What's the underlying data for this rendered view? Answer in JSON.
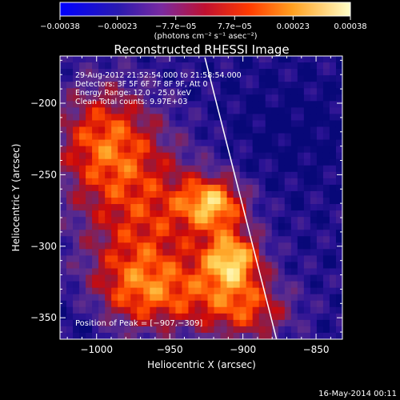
{
  "chart_data": {
    "type": "heatmap",
    "title": "Reconstructed RHESSI Image",
    "xlabel": "Heliocentric X (arcsec)",
    "ylabel": "Heliocentric Y (arcsec)",
    "xlim": [
      -1025,
      -832
    ],
    "ylim": [
      -365,
      -167
    ],
    "x_ticks": [
      -1000,
      -950,
      -900,
      -850
    ],
    "x_tick_labels": [
      "−1000",
      "−950",
      "−900",
      "−850"
    ],
    "y_ticks": [
      -200,
      -250,
      -300,
      -350
    ],
    "y_tick_labels": [
      "−200",
      "−250",
      "−300",
      "−350"
    ],
    "colorbar": {
      "min": -0.00038,
      "max": 0.00038,
      "tick_labels": [
        "−0.00038",
        "−0.00023",
        "−7.7e−05",
        "7.7e−05",
        "0.00023",
        "0.00038"
      ],
      "unit_label": "(photons cm⁻² s⁻¹ asec⁻²)",
      "colormap": [
        "#0a0aa8",
        "#5a1a9c",
        "#8a3a8e",
        "#c01010",
        "#ff5a00",
        "#ffb830",
        "#ffffd0"
      ]
    },
    "annotations": [
      "29-Aug-2012 21:52:54.000 to 21:58:54.000",
      "Detectors: 3F 5F 6F 7F 8F 9F, Att 0",
      "Energy Range: 12.0 - 25.0 keV",
      "Clean     Total counts: 9.97E+03"
    ],
    "peak_label": "Position of Peak = [−907,−309]",
    "peak": [
      -907,
      -309
    ],
    "limb_line": {
      "x": [
        -926,
        -877
      ],
      "y": [
        -168,
        -365
      ]
    },
    "timestamp": "16-May-2014 00:11"
  }
}
